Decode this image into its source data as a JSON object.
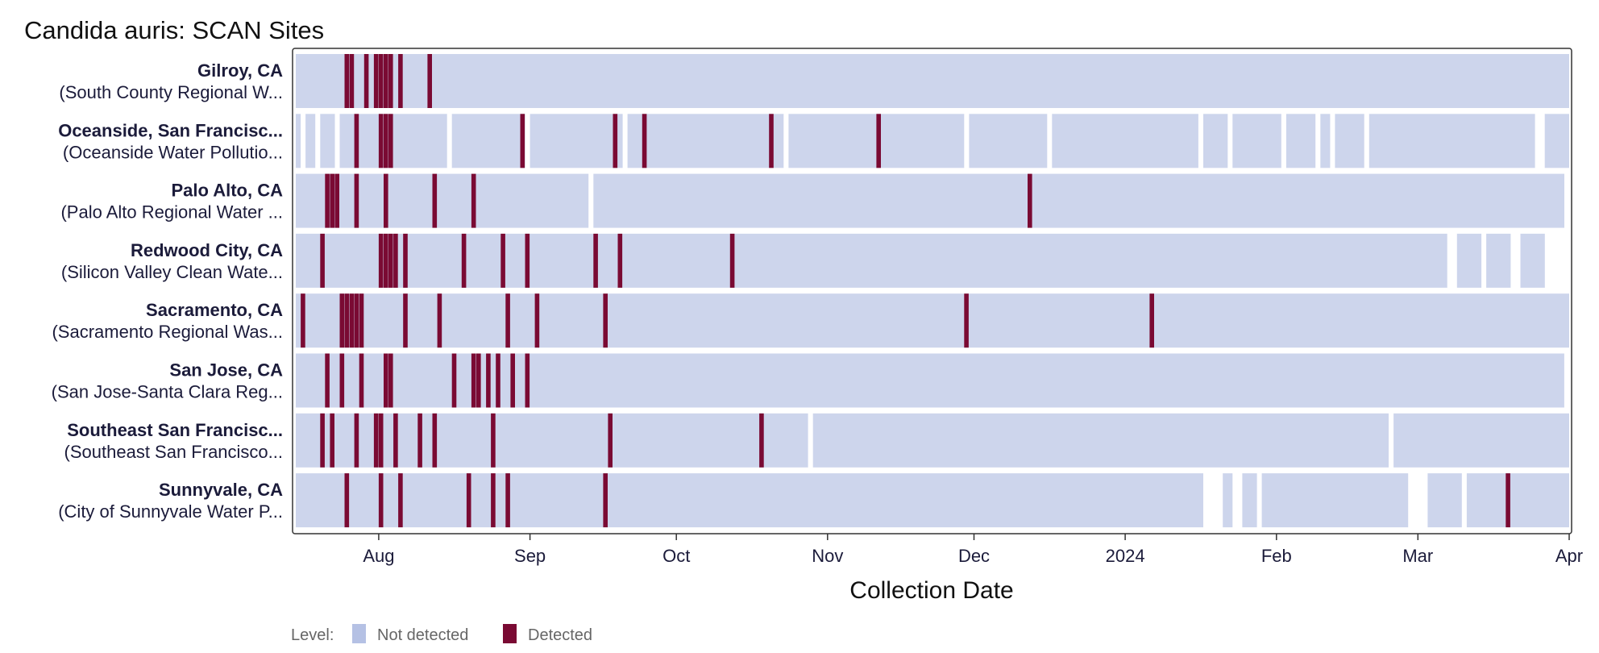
{
  "chart_data": {
    "type": "heatmap",
    "title": "Candida auris: SCAN Sites",
    "xlabel": "Collection Date",
    "ylabel": "",
    "x_range": [
      "2023-07-15",
      "2024-04-01"
    ],
    "x_ticks": [
      {
        "date": "2023-08-01",
        "label": "Aug"
      },
      {
        "date": "2023-09-01",
        "label": "Sep"
      },
      {
        "date": "2023-10-01",
        "label": "Oct"
      },
      {
        "date": "2023-11-01",
        "label": "Nov"
      },
      {
        "date": "2023-12-01",
        "label": "Dec"
      },
      {
        "date": "2024-01-01",
        "label": "2024"
      },
      {
        "date": "2024-02-01",
        "label": "Feb"
      },
      {
        "date": "2024-03-01",
        "label": "Mar"
      },
      {
        "date": "2024-04-01",
        "label": "Apr"
      }
    ],
    "levels": [
      {
        "key": "not_detected",
        "label": "Not detected",
        "color": "#cdd5ec"
      },
      {
        "key": "detected",
        "label": "Detected",
        "color": "#7a0a33"
      }
    ],
    "legend": {
      "title": "Level:",
      "position": "bottom-left"
    },
    "sites": [
      {
        "name": "Gilroy, CA",
        "plant": "(South County Regional W...",
        "sampled_ranges": [
          [
            "2023-07-15",
            "2024-04-01"
          ]
        ],
        "detected_dates": [
          "2023-07-25",
          "2023-07-26",
          "2023-07-29",
          "2023-07-31",
          "2023-08-01",
          "2023-08-02",
          "2023-08-03",
          "2023-08-05",
          "2023-08-11"
        ]
      },
      {
        "name": "Oceanside, San Francisc...",
        "plant": "(Oceanside Water Pollutio...",
        "sampled_ranges": [
          [
            "2023-07-15",
            "2023-07-16"
          ],
          [
            "2023-07-17",
            "2023-07-19"
          ],
          [
            "2023-07-20",
            "2023-07-23"
          ],
          [
            "2023-07-24",
            "2023-08-15"
          ],
          [
            "2023-08-16",
            "2023-08-31"
          ],
          [
            "2023-09-01",
            "2023-09-20"
          ],
          [
            "2023-09-21",
            "2023-10-23"
          ],
          [
            "2023-10-24",
            "2023-11-29"
          ],
          [
            "2023-11-30",
            "2023-12-16"
          ],
          [
            "2023-12-17",
            "2024-01-16"
          ],
          [
            "2024-01-17",
            "2024-01-22"
          ],
          [
            "2024-01-23",
            "2024-02-02"
          ],
          [
            "2024-02-03",
            "2024-02-09"
          ],
          [
            "2024-02-10",
            "2024-02-12"
          ],
          [
            "2024-02-13",
            "2024-02-19"
          ],
          [
            "2024-02-20",
            "2024-03-25"
          ],
          [
            "2024-03-27",
            "2024-04-01"
          ]
        ],
        "detected_dates": [
          "2023-07-27",
          "2023-08-01",
          "2023-08-02",
          "2023-08-03",
          "2023-08-30",
          "2023-09-18",
          "2023-09-24",
          "2023-10-20",
          "2023-11-11"
        ]
      },
      {
        "name": "Palo Alto, CA",
        "plant": "(Palo Alto Regional Water ...",
        "sampled_ranges": [
          [
            "2023-07-15",
            "2023-09-13"
          ],
          [
            "2023-09-14",
            "2024-03-31"
          ]
        ],
        "detected_dates": [
          "2023-07-21",
          "2023-07-22",
          "2023-07-23",
          "2023-07-27",
          "2023-08-02",
          "2023-08-12",
          "2023-08-20",
          "2023-12-12"
        ]
      },
      {
        "name": "Redwood City, CA",
        "plant": "(Silicon Valley Clean Wate...",
        "sampled_ranges": [
          [
            "2023-07-15",
            "2024-03-07"
          ],
          [
            "2024-03-09",
            "2024-03-14"
          ],
          [
            "2024-03-15",
            "2024-03-20"
          ],
          [
            "2024-03-22",
            "2024-03-27"
          ]
        ],
        "detected_dates": [
          "2023-07-20",
          "2023-08-01",
          "2023-08-02",
          "2023-08-03",
          "2023-08-04",
          "2023-08-06",
          "2023-08-18",
          "2023-08-26",
          "2023-08-31",
          "2023-09-14",
          "2023-09-19",
          "2023-10-12"
        ]
      },
      {
        "name": "Sacramento, CA",
        "plant": "(Sacramento Regional Was...",
        "sampled_ranges": [
          [
            "2023-07-15",
            "2024-04-01"
          ]
        ],
        "detected_dates": [
          "2023-07-16",
          "2023-07-24",
          "2023-07-25",
          "2023-07-26",
          "2023-07-27",
          "2023-07-28",
          "2023-08-06",
          "2023-08-13",
          "2023-08-27",
          "2023-09-02",
          "2023-09-16",
          "2023-11-29",
          "2024-01-06"
        ]
      },
      {
        "name": "San Jose, CA",
        "plant": "(San Jose-Santa Clara Reg...",
        "sampled_ranges": [
          [
            "2023-07-15",
            "2024-03-31"
          ]
        ],
        "detected_dates": [
          "2023-07-21",
          "2023-07-24",
          "2023-07-28",
          "2023-08-02",
          "2023-08-03",
          "2023-08-16",
          "2023-08-20",
          "2023-08-21",
          "2023-08-23",
          "2023-08-25",
          "2023-08-28",
          "2023-08-31"
        ]
      },
      {
        "name": "Southeast San Francisc...",
        "plant": "(Southeast San Francisco...",
        "sampled_ranges": [
          [
            "2023-07-15",
            "2023-10-28"
          ],
          [
            "2023-10-29",
            "2024-02-24"
          ],
          [
            "2024-02-25",
            "2024-04-01"
          ]
        ],
        "detected_dates": [
          "2023-07-20",
          "2023-07-22",
          "2023-07-27",
          "2023-07-31",
          "2023-08-01",
          "2023-08-04",
          "2023-08-09",
          "2023-08-12",
          "2023-08-24",
          "2023-09-17",
          "2023-10-18"
        ]
      },
      {
        "name": "Sunnyvale, CA",
        "plant": "(City of Sunnyvale Water P...",
        "sampled_ranges": [
          [
            "2023-07-15",
            "2024-01-17"
          ],
          [
            "2024-01-21",
            "2024-01-23"
          ],
          [
            "2024-01-25",
            "2024-01-28"
          ],
          [
            "2024-01-29",
            "2024-02-28"
          ],
          [
            "2024-03-03",
            "2024-03-10"
          ],
          [
            "2024-03-11",
            "2024-04-01"
          ]
        ],
        "detected_dates": [
          "2023-07-25",
          "2023-08-01",
          "2023-08-05",
          "2023-08-19",
          "2023-08-24",
          "2023-08-27",
          "2023-09-16",
          "2024-03-19"
        ]
      }
    ]
  }
}
